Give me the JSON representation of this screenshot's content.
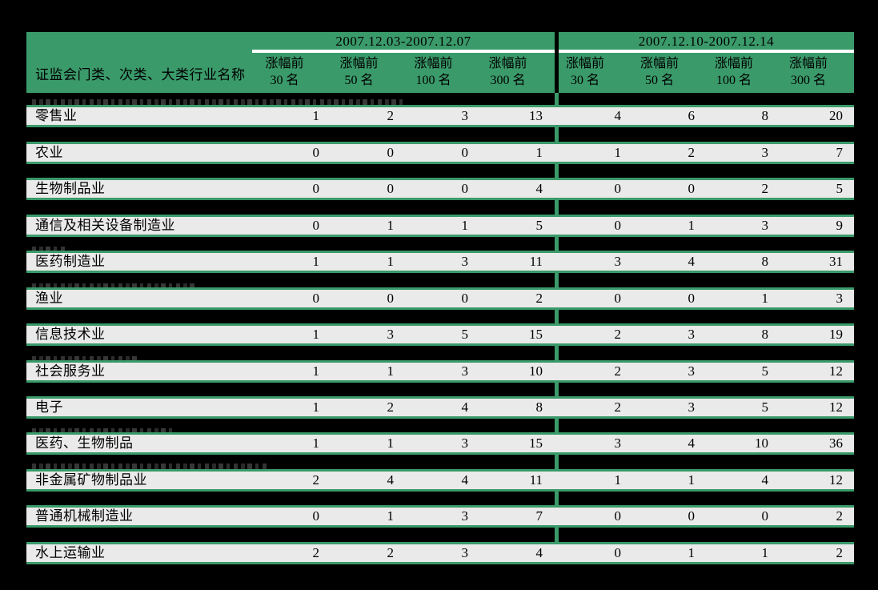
{
  "colors": {
    "background": "#000000",
    "header_green": "#3a9a6a",
    "row_background": "#eaeaea",
    "text": "#000000",
    "date_underline": "#ffffff",
    "header_group_divider": "#000000"
  },
  "chart_data": {
    "type": "table",
    "row_header": "证监会门类、次类、大类行业名称",
    "column_groups": [
      {
        "date_range": "2007.12.03-2007.12.07",
        "columns": [
          "涨幅前 30 名",
          "涨幅前 50 名",
          "涨幅前 100 名",
          "涨幅前 300 名"
        ]
      },
      {
        "date_range": "2007.12.10-2007.12.14",
        "columns": [
          "涨幅前 30 名",
          "涨幅前 50 名",
          "涨幅前 100 名",
          "涨幅前 300 名"
        ]
      }
    ],
    "column_label_line1": "涨幅前",
    "column_label_line2": [
      "30 名",
      "50 名",
      "100 名",
      "300 名"
    ],
    "rows": [
      {
        "name": "零售业",
        "values": [
          1,
          2,
          3,
          13,
          4,
          6,
          8,
          20
        ]
      },
      {
        "name": "农业",
        "values": [
          0,
          0,
          0,
          1,
          1,
          2,
          3,
          7
        ]
      },
      {
        "name": "生物制品业",
        "values": [
          0,
          0,
          0,
          4,
          0,
          0,
          2,
          5
        ]
      },
      {
        "name": "通信及相关设备制造业",
        "values": [
          0,
          1,
          1,
          5,
          0,
          1,
          3,
          9
        ]
      },
      {
        "name": "医药制造业",
        "values": [
          1,
          1,
          3,
          11,
          3,
          4,
          8,
          31
        ]
      },
      {
        "name": "渔业",
        "values": [
          0,
          0,
          0,
          2,
          0,
          0,
          1,
          3
        ]
      },
      {
        "name": "信息技术业",
        "values": [
          1,
          3,
          5,
          15,
          2,
          3,
          8,
          19
        ]
      },
      {
        "name": "社会服务业",
        "values": [
          1,
          1,
          3,
          10,
          2,
          3,
          5,
          12
        ]
      },
      {
        "name": "电子",
        "values": [
          1,
          2,
          4,
          8,
          2,
          3,
          5,
          12
        ]
      },
      {
        "name": "医药、生物制品",
        "values": [
          1,
          1,
          3,
          15,
          3,
          4,
          10,
          36
        ]
      },
      {
        "name": "非金属矿物制品业",
        "values": [
          2,
          4,
          4,
          11,
          1,
          1,
          4,
          12
        ]
      },
      {
        "name": "普通机械制造业",
        "values": [
          0,
          1,
          3,
          7,
          0,
          0,
          0,
          2
        ]
      },
      {
        "name": "水上运输业",
        "values": [
          2,
          2,
          3,
          4,
          0,
          1,
          1,
          2
        ]
      }
    ]
  }
}
